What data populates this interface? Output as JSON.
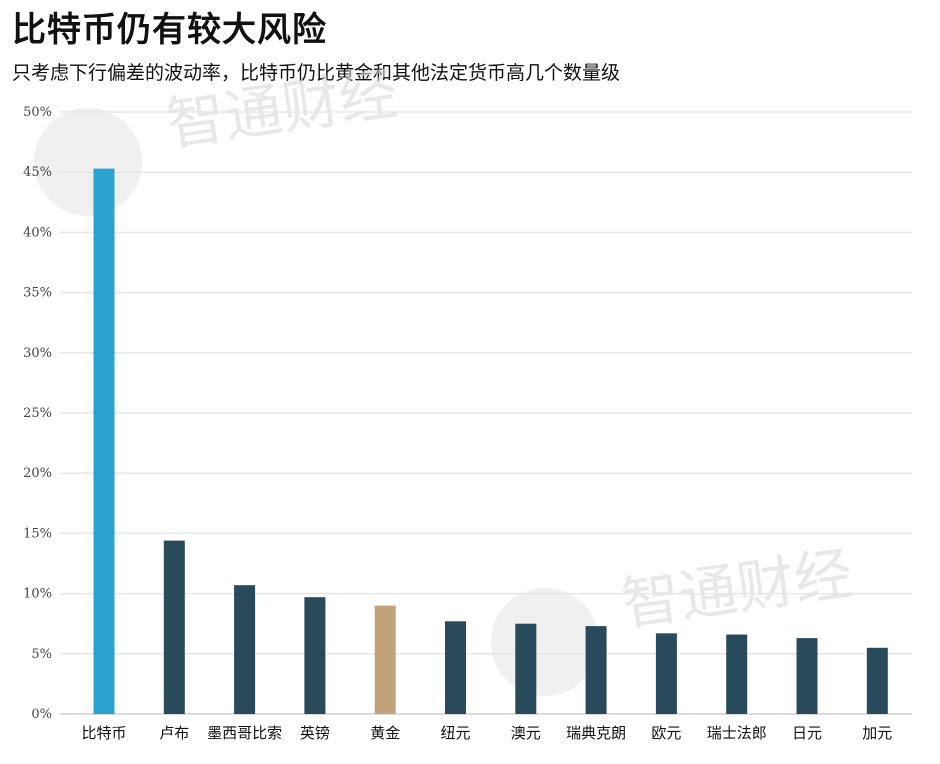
{
  "header": {
    "title": "比特币仍有较大风险",
    "subtitle": "只考虑下行偏差的波动率，比特币仍比黄金和其他法定货币高几个数量级"
  },
  "watermark": {
    "text": "智通财经"
  },
  "colors": {
    "bitcoin": "#2aa3cf",
    "currency": "#284a5a",
    "gold": "#c2a27a",
    "grid": "#e6e6e6"
  },
  "chart_data": {
    "type": "bar",
    "categories": [
      "比特币",
      "卢布",
      "墨西哥比索",
      "英镑",
      "黄金",
      "纽元",
      "澳元",
      "瑞典克朗",
      "欧元",
      "瑞士法郎",
      "日元",
      "加元"
    ],
    "values": [
      45.3,
      14.4,
      10.7,
      9.7,
      9.0,
      7.7,
      7.5,
      7.3,
      6.7,
      6.6,
      6.3,
      5.5
    ],
    "bar_colors": [
      "#2aa3cf",
      "#284a5a",
      "#284a5a",
      "#284a5a",
      "#c2a27a",
      "#284a5a",
      "#284a5a",
      "#284a5a",
      "#284a5a",
      "#284a5a",
      "#284a5a",
      "#284a5a"
    ],
    "ylim": [
      0,
      50
    ],
    "yticks": [
      0,
      5,
      10,
      15,
      20,
      25,
      30,
      35,
      40,
      45,
      50
    ],
    "ytick_labels": [
      "0%",
      "5%",
      "10%",
      "15%",
      "20%",
      "25%",
      "30%",
      "35%",
      "40%",
      "45%",
      "50%"
    ],
    "grid": true,
    "xlabel": "",
    "ylabel": ""
  }
}
